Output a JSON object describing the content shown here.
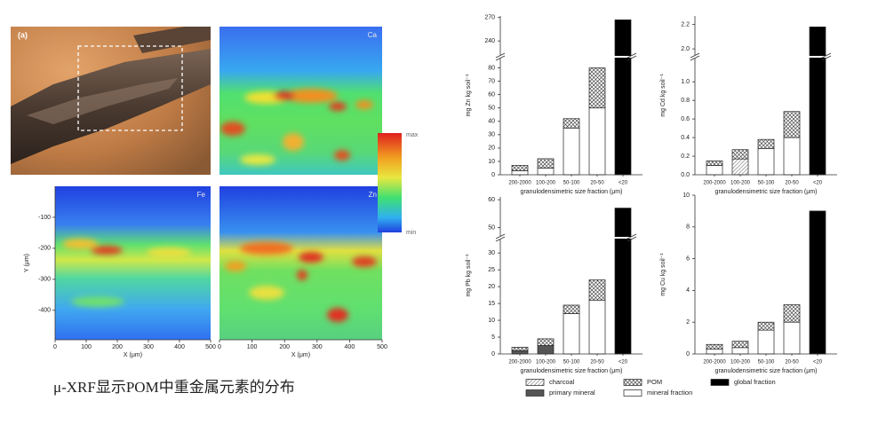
{
  "figure_left": {
    "panel_label": "(a)",
    "maps": [
      {
        "element": "Ca"
      },
      {
        "element": "Fe",
        "xlabel": "X (μm)",
        "ylabel": "Y (μm)",
        "xlim": [
          0,
          500
        ],
        "xticks": [
          0,
          100,
          200,
          300,
          400,
          500
        ],
        "ylim": [
          -495,
          0
        ],
        "yticks": [
          -100,
          -200,
          -300,
          -400
        ]
      },
      {
        "element": "Zn",
        "xlabel": "X (μm)",
        "xlim": [
          0,
          500
        ],
        "xticks": [
          0,
          100,
          200,
          300,
          400,
          500
        ]
      }
    ],
    "colorbar": {
      "max_label": "max",
      "min_label": "min"
    }
  },
  "caption": "μ-XRF显示POM中重金属元素的分布",
  "legend_series": [
    {
      "name": "charcoal",
      "fill": "hatch"
    },
    {
      "name": "primary mineral",
      "fill": "#555555"
    },
    {
      "name": "mineral fraction",
      "fill": "#ffffff"
    },
    {
      "name": "POM",
      "fill": "crosshatch"
    },
    {
      "name": "global fraction",
      "fill": "#000000"
    }
  ],
  "chart_data": [
    {
      "type": "bar",
      "stacked": true,
      "ylabel": "mg Zn kg soil⁻¹",
      "xlabel": "granulodensimetric size fraction (μm)",
      "categories": [
        "200-2000",
        "100-200",
        "50-100",
        "20-50",
        "<20"
      ],
      "ylim": [
        0,
        87
      ],
      "yticks": [
        0,
        10,
        20,
        30,
        40,
        50,
        60,
        70,
        80
      ],
      "ylim_upper": [
        222,
        272
      ],
      "yticks_upper": [
        240,
        270
      ],
      "values": [
        [
          null,
          null,
          null,
          null,
          null
        ],
        [
          null,
          null,
          null,
          null,
          null
        ],
        [
          3,
          5,
          35,
          50,
          null
        ],
        [
          4,
          7,
          7,
          30,
          null
        ],
        [
          null,
          null,
          null,
          null,
          267
        ]
      ]
    },
    {
      "type": "bar",
      "stacked": true,
      "ylabel": "mg Cd kg soil⁻¹",
      "xlabel": "granulodensimetric size fraction (μm)",
      "categories": [
        "200-2000",
        "100-200",
        "50-100",
        "20-50",
        "<20"
      ],
      "ylim": [
        0,
        1.25
      ],
      "yticks": [
        {
          "value": 0,
          "label": "0.0"
        },
        0.2,
        0.4,
        0.6,
        0.8,
        {
          "value": 1,
          "label": "1.0"
        }
      ],
      "ylim_upper": [
        1.95,
        2.27
      ],
      "yticks_upper": [
        {
          "value": 2,
          "label": "2.0"
        },
        2.2
      ],
      "values": [
        [
          null,
          0.17,
          null,
          null,
          null
        ],
        [
          null,
          null,
          null,
          null,
          null
        ],
        [
          0.1,
          null,
          0.28,
          0.4,
          null
        ],
        [
          0.05,
          0.1,
          0.1,
          0.28,
          null
        ],
        [
          null,
          null,
          null,
          null,
          2.18
        ]
      ]
    },
    {
      "type": "bar",
      "stacked": true,
      "ylabel": "mg Pb kg soil⁻¹",
      "xlabel": "granulodensimetric size fraction (μm)",
      "categories": [
        "200-2000",
        "100-200",
        "50-100",
        "20-50",
        "<20"
      ],
      "ylim": [
        0,
        34
      ],
      "yticks": [
        0,
        5,
        10,
        15,
        20,
        25,
        30
      ],
      "ylim_upper": [
        47,
        61
      ],
      "yticks_upper": [
        50,
        60
      ],
      "values": [
        [
          null,
          null,
          null,
          null,
          null
        ],
        [
          1,
          2.5,
          null,
          null,
          null
        ],
        [
          null,
          null,
          12,
          16,
          null
        ],
        [
          1,
          2,
          2.5,
          6,
          null
        ],
        [
          null,
          null,
          null,
          null,
          57
        ]
      ]
    },
    {
      "type": "bar",
      "stacked": true,
      "ylabel": "mg Cu kg soil⁻¹",
      "xlabel": "granulodensimetric size fraction (μm)",
      "categories": [
        "200-2000",
        "100-200",
        "50-100",
        "20-50",
        "<20"
      ],
      "ylim": [
        0,
        10
      ],
      "yticks": [
        0,
        2,
        4,
        6,
        8,
        10
      ],
      "values": [
        [
          null,
          null,
          null,
          null,
          null
        ],
        [
          null,
          null,
          null,
          null,
          null
        ],
        [
          0.3,
          0.4,
          1.5,
          2,
          null
        ],
        [
          0.3,
          0.4,
          0.5,
          1.1,
          null
        ],
        [
          null,
          null,
          null,
          null,
          9
        ]
      ]
    }
  ]
}
